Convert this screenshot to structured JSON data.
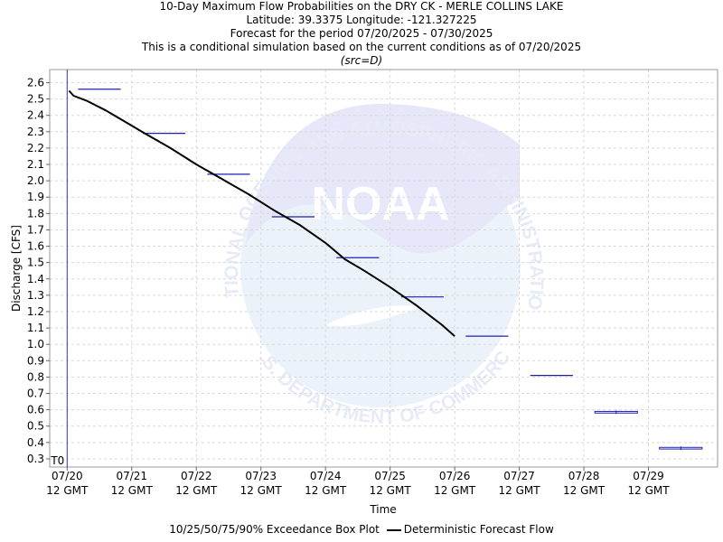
{
  "titles": {
    "line1": "10-Day Maximum Flow Probabilities on the DRY CK - MERLE COLLINS LAKE",
    "line2": "Latitude: 39.3375 Longitude: -121.327225",
    "line3": "Forecast for the period 07/20/2025 - 07/30/2025",
    "line4": "This is a conditional simulation based on the current conditions as of 07/20/2025",
    "line5": "(src=D)"
  },
  "watermark": {
    "logo_text": "NOAA",
    "upper_ring_text": "NATIONAL OCEANIC AND ATMOSPHERIC ADMINISTRATION",
    "lower_ring_text": "U.S. DEPARTMENT OF COMMERCE"
  },
  "legend": {
    "box_label": "10/25/50/75/90% Exceedance Box Plot",
    "line_label": "Deterministic Forecast Flow"
  },
  "colors": {
    "box": "#2020b0",
    "forecast": "#000000",
    "t0": "#3333cc",
    "grid": "#d8d8d8"
  },
  "chart_data": {
    "type": "line",
    "xlabel": "Time",
    "ylabel": "Discharge [CFS]",
    "ylim": [
      0.25,
      2.68
    ],
    "y_ticks": [
      0.3,
      0.4,
      0.5,
      0.6,
      0.7,
      0.8,
      0.9,
      1.0,
      1.1,
      1.2,
      1.3,
      1.4,
      1.5,
      1.6,
      1.7,
      1.8,
      1.9,
      2.0,
      2.1,
      2.2,
      2.3,
      2.4,
      2.5,
      2.6
    ],
    "x_ticks": [
      {
        "date": "07/20",
        "time": "12 GMT",
        "day": 0
      },
      {
        "date": "07/21",
        "time": "12 GMT",
        "day": 1
      },
      {
        "date": "07/22",
        "time": "12 GMT",
        "day": 2
      },
      {
        "date": "07/23",
        "time": "12 GMT",
        "day": 3
      },
      {
        "date": "07/24",
        "time": "12 GMT",
        "day": 4
      },
      {
        "date": "07/25",
        "time": "12 GMT",
        "day": 5
      },
      {
        "date": "07/26",
        "time": "12 GMT",
        "day": 6
      },
      {
        "date": "07/27",
        "time": "12 GMT",
        "day": 7
      },
      {
        "date": "07/28",
        "time": "12 GMT",
        "day": 8
      },
      {
        "date": "07/29",
        "time": "12 GMT",
        "day": 9
      }
    ],
    "xlim": [
      -0.27,
      10.07
    ],
    "t0": {
      "label": "T0",
      "day": 0
    },
    "series": [
      {
        "name": "Deterministic Forecast Flow",
        "x": [
          0.03,
          0.1,
          0.3,
          0.6,
          0.9,
          1.2,
          1.6,
          2.0,
          2.4,
          2.8,
          3.2,
          3.6,
          4.0,
          4.3,
          4.6,
          5.0,
          5.4,
          5.8,
          6.0
        ],
        "y": [
          2.55,
          2.52,
          2.49,
          2.43,
          2.36,
          2.29,
          2.2,
          2.1,
          2.01,
          1.92,
          1.82,
          1.73,
          1.62,
          1.52,
          1.45,
          1.35,
          1.24,
          1.12,
          1.05
        ]
      }
    ],
    "boxes": [
      {
        "day": 0,
        "value": 2.56
      },
      {
        "day": 1,
        "value": 2.29
      },
      {
        "day": 2,
        "value": 2.04
      },
      {
        "day": 3,
        "value": 1.78
      },
      {
        "day": 4,
        "value": 1.53
      },
      {
        "day": 5,
        "value": 1.29
      },
      {
        "day": 6,
        "value": 1.05
      },
      {
        "day": 7,
        "value": 0.81
      },
      {
        "day": 8,
        "value": 0.58,
        "top": 0.59
      },
      {
        "day": 9,
        "value": 0.36,
        "top": 0.37
      }
    ],
    "grid": true,
    "legend_position": "bottom"
  }
}
